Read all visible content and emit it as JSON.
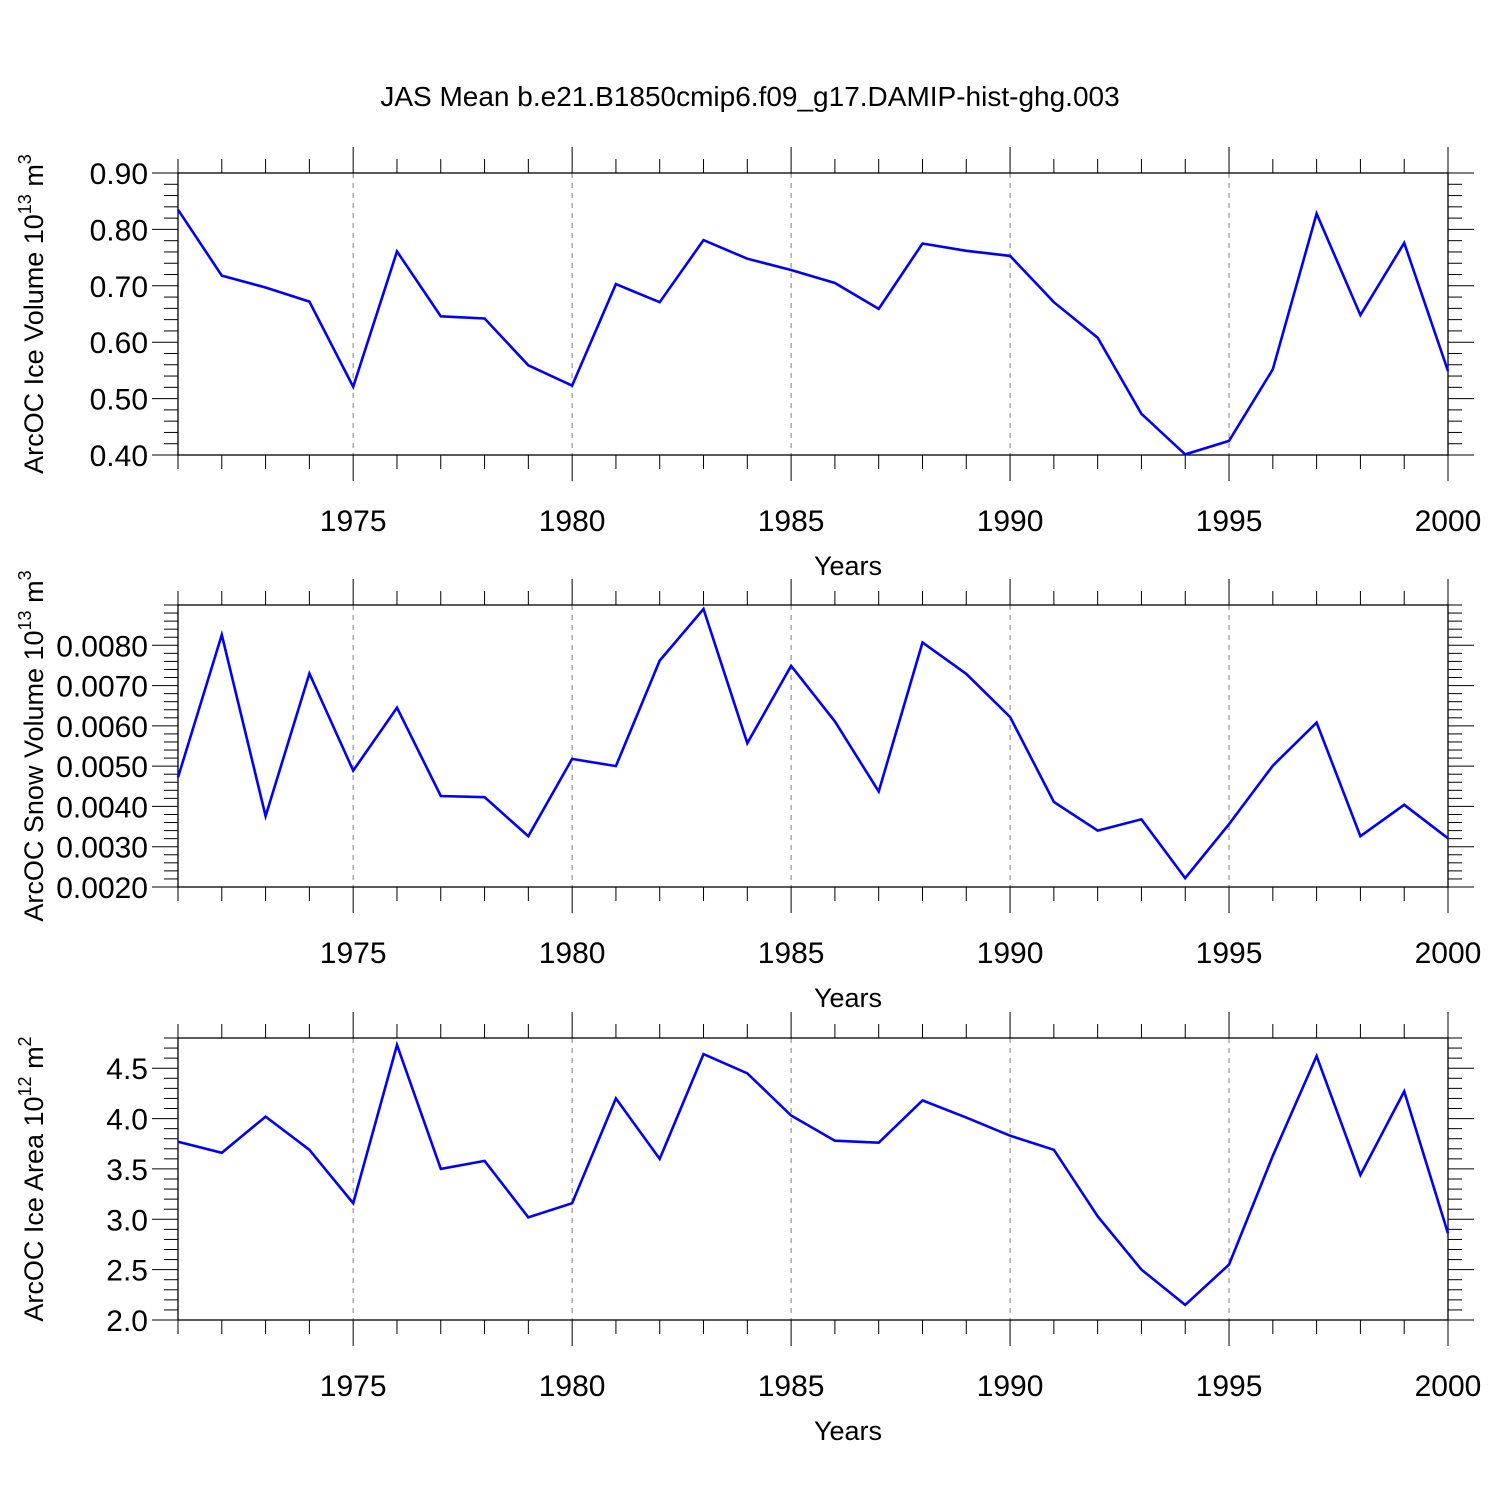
{
  "title": "JAS Mean b.e21.B1850cmip6.f09_g17.DAMIP-hist-ghg.003",
  "colors": {
    "series": "#0000ff",
    "frame": "#000000",
    "gridline": "#808080",
    "background": "#ffffff"
  },
  "chart_data": [
    {
      "type": "line",
      "ylabel_main": "ArcOC Ice Volume 10",
      "ylabel_exp": "13",
      "ylabel_unit": " m",
      "ylabel_unit_exp": "3",
      "xlabel": "Years",
      "xlim": [
        1971,
        2000
      ],
      "ylim": [
        0.4,
        0.9
      ],
      "yticks": [
        0.4,
        0.5,
        0.6,
        0.7,
        0.8,
        0.9
      ],
      "ytick_labels": [
        "0.40",
        "0.50",
        "0.60",
        "0.70",
        "0.80",
        "0.90"
      ],
      "xticks": [
        1975,
        1980,
        1985,
        1990,
        1995,
        2000
      ],
      "xtick_labels": [
        "1975",
        "1980",
        "1985",
        "1990",
        "1995",
        "2000"
      ],
      "grid": "vertical dashed at major x ticks",
      "x": [
        1971,
        1972,
        1973,
        1974,
        1975,
        1976,
        1977,
        1978,
        1979,
        1980,
        1981,
        1982,
        1983,
        1984,
        1985,
        1986,
        1987,
        1988,
        1989,
        1990,
        1991,
        1992,
        1993,
        1994,
        1995,
        1996,
        1997,
        1998,
        1999,
        2000
      ],
      "values": [
        0.835,
        0.718,
        0.697,
        0.672,
        0.521,
        0.761,
        0.646,
        0.642,
        0.559,
        0.523,
        0.703,
        0.671,
        0.781,
        0.748,
        0.728,
        0.705,
        0.659,
        0.775,
        0.762,
        0.753,
        0.671,
        0.608,
        0.473,
        0.401,
        0.425,
        0.552,
        0.828,
        0.648,
        0.776,
        0.549
      ]
    },
    {
      "type": "line",
      "ylabel_main": "ArcOC Snow Volume 10",
      "ylabel_exp": "13",
      "ylabel_unit": " m",
      "ylabel_unit_exp": "3",
      "xlabel": "Years",
      "xlim": [
        1971,
        2000
      ],
      "ylim": [
        0.002,
        0.009
      ],
      "yticks": [
        0.002,
        0.003,
        0.004,
        0.005,
        0.006,
        0.007,
        0.008
      ],
      "ytick_labels": [
        "0.0020",
        "0.0030",
        "0.0040",
        "0.0050",
        "0.0060",
        "0.0070",
        "0.0080"
      ],
      "xticks": [
        1975,
        1980,
        1985,
        1990,
        1995,
        2000
      ],
      "xtick_labels": [
        "1975",
        "1980",
        "1985",
        "1990",
        "1995",
        "2000"
      ],
      "grid": "vertical dashed at major x ticks",
      "x": [
        1971,
        1972,
        1973,
        1974,
        1975,
        1976,
        1977,
        1978,
        1979,
        1980,
        1981,
        1982,
        1983,
        1984,
        1985,
        1986,
        1987,
        1988,
        1989,
        1990,
        1991,
        1992,
        1993,
        1994,
        1995,
        1996,
        1997,
        1998,
        1999,
        2000
      ],
      "values": [
        0.00472,
        0.00826,
        0.00376,
        0.0073,
        0.00489,
        0.00645,
        0.00426,
        0.00423,
        0.00326,
        0.00518,
        0.005,
        0.00762,
        0.0089,
        0.00557,
        0.00749,
        0.00611,
        0.00437,
        0.00807,
        0.00729,
        0.00622,
        0.00411,
        0.0034,
        0.00368,
        0.00222,
        0.00356,
        0.00501,
        0.00608,
        0.00326,
        0.00404,
        0.00321
      ]
    },
    {
      "type": "line",
      "ylabel_main": "ArcOC Ice Area 10",
      "ylabel_exp": "12",
      "ylabel_unit": " m",
      "ylabel_unit_exp": "2",
      "xlabel": "Years",
      "xlim": [
        1971,
        2000
      ],
      "ylim": [
        2.0,
        4.8
      ],
      "yticks": [
        2.0,
        2.5,
        3.0,
        3.5,
        4.0,
        4.5
      ],
      "ytick_labels": [
        "2.0",
        "2.5",
        "3.0",
        "3.5",
        "4.0",
        "4.5"
      ],
      "xticks": [
        1975,
        1980,
        1985,
        1990,
        1995,
        2000
      ],
      "xtick_labels": [
        "1975",
        "1980",
        "1985",
        "1990",
        "1995",
        "2000"
      ],
      "grid": "vertical dashed at major x ticks",
      "x": [
        1971,
        1972,
        1973,
        1974,
        1975,
        1976,
        1977,
        1978,
        1979,
        1980,
        1981,
        1982,
        1983,
        1984,
        1985,
        1986,
        1987,
        1988,
        1989,
        1990,
        1991,
        1992,
        1993,
        1994,
        1995,
        1996,
        1997,
        1998,
        1999,
        2000
      ],
      "values": [
        3.77,
        3.66,
        4.02,
        3.69,
        3.16,
        4.73,
        3.5,
        3.58,
        3.02,
        3.16,
        4.2,
        3.6,
        4.64,
        4.45,
        4.03,
        3.78,
        3.76,
        4.18,
        4.01,
        3.83,
        3.69,
        3.03,
        2.5,
        2.15,
        2.55,
        3.63,
        4.62,
        3.44,
        4.27,
        2.86
      ]
    }
  ]
}
